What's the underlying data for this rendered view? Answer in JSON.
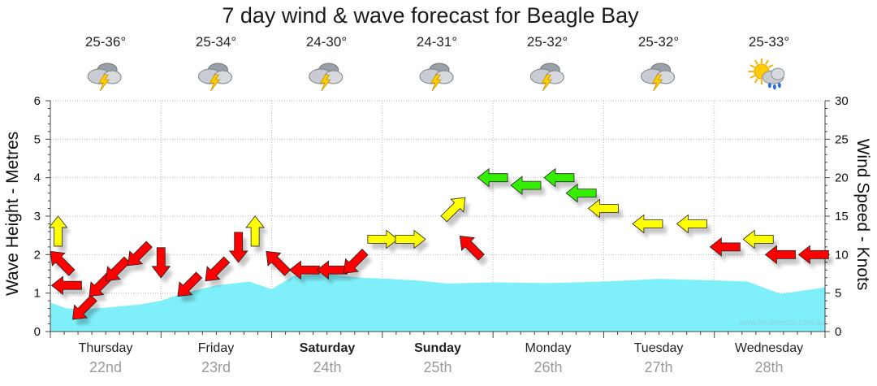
{
  "title": "7 day wind & wave forecast for Beagle Bay",
  "y_left_label": "Wave Height - Metres",
  "y_right_label": "Wind Speed - Knots",
  "watermark": "www.seabreeze.com.au",
  "colors": {
    "wave_fill": "#7ff0fa",
    "wind_red": "#ff0000",
    "wind_yellow": "#ffff00",
    "wind_green": "#33ee00",
    "grid": "#bbbbbb"
  },
  "days": [
    {
      "name": "Thursday",
      "date": "22nd",
      "temp": "25-36°",
      "icon": "thunderstorm-icon",
      "bold": false
    },
    {
      "name": "Friday",
      "date": "23rd",
      "temp": "25-34°",
      "icon": "thunderstorm-icon",
      "bold": false
    },
    {
      "name": "Saturday",
      "date": "24th",
      "temp": "24-30°",
      "icon": "thunderstorm-icon",
      "bold": true
    },
    {
      "name": "Sunday",
      "date": "25th",
      "temp": "24-31°",
      "icon": "thunderstorm-icon",
      "bold": true
    },
    {
      "name": "Monday",
      "date": "26th",
      "temp": "25-32°",
      "icon": "thunderstorm-icon",
      "bold": false
    },
    {
      "name": "Tuesday",
      "date": "27th",
      "temp": "25-32°",
      "icon": "thunderstorm-icon",
      "bold": false
    },
    {
      "name": "Wednesday",
      "date": "28th",
      "temp": "25-33°",
      "icon": "sun-cloud-rain-icon",
      "bold": false
    }
  ],
  "chart_data": {
    "type": "area",
    "title": "7 day wind & wave forecast for Beagle Bay",
    "x_unit": "days from start of Thursday 22nd",
    "xlim": [
      0,
      7
    ],
    "y_left": {
      "label": "Wave Height - Metres",
      "ylim": [
        0,
        6
      ],
      "ticks": [
        0,
        1,
        2,
        3,
        4,
        5,
        6
      ]
    },
    "y_right": {
      "label": "Wind Speed - Knots",
      "ylim": [
        0,
        30
      ],
      "ticks": [
        0,
        5,
        10,
        15,
        20,
        25,
        30
      ]
    },
    "grid": true,
    "wave_height": {
      "x": [
        0,
        0.15,
        0.3,
        0.5,
        0.8,
        1.0,
        1.2,
        1.5,
        1.8,
        2.0,
        2.2,
        2.5,
        2.8,
        3.0,
        3.3,
        3.6,
        4.0,
        4.5,
        5.0,
        5.5,
        6.0,
        6.3,
        6.6,
        7.0
      ],
      "values": [
        0.75,
        0.6,
        0.58,
        0.62,
        0.7,
        0.8,
        1.0,
        1.2,
        1.3,
        1.1,
        1.45,
        1.5,
        1.4,
        1.38,
        1.33,
        1.25,
        1.28,
        1.26,
        1.3,
        1.37,
        1.33,
        1.3,
        0.98,
        1.15
      ]
    },
    "wind": [
      {
        "x": 0.07,
        "speed_knots": 13,
        "direction": "S",
        "color": "yellow"
      },
      {
        "x": 0.1,
        "speed_knots": 9,
        "direction": "SE",
        "color": "red"
      },
      {
        "x": 0.15,
        "speed_knots": 6,
        "direction": "E",
        "color": "red"
      },
      {
        "x": 0.3,
        "speed_knots": 3,
        "direction": "NE",
        "color": "red"
      },
      {
        "x": 0.45,
        "speed_knots": 6,
        "direction": "NE",
        "color": "red"
      },
      {
        "x": 0.6,
        "speed_knots": 8,
        "direction": "NE",
        "color": "red"
      },
      {
        "x": 0.8,
        "speed_knots": 10,
        "direction": "NE",
        "color": "red"
      },
      {
        "x": 1.0,
        "speed_knots": 9,
        "direction": "N",
        "color": "red"
      },
      {
        "x": 1.25,
        "speed_knots": 6,
        "direction": "NE",
        "color": "red"
      },
      {
        "x": 1.5,
        "speed_knots": 8,
        "direction": "NE",
        "color": "red"
      },
      {
        "x": 1.7,
        "speed_knots": 11,
        "direction": "N",
        "color": "red"
      },
      {
        "x": 1.85,
        "speed_knots": 13,
        "direction": "S",
        "color": "yellow"
      },
      {
        "x": 2.05,
        "speed_knots": 9,
        "direction": "SE",
        "color": "red"
      },
      {
        "x": 2.3,
        "speed_knots": 8,
        "direction": "E",
        "color": "red"
      },
      {
        "x": 2.55,
        "speed_knots": 8,
        "direction": "E",
        "color": "red"
      },
      {
        "x": 2.75,
        "speed_knots": 9,
        "direction": "NE",
        "color": "red"
      },
      {
        "x": 3.0,
        "speed_knots": 12,
        "direction": "W",
        "color": "yellow"
      },
      {
        "x": 3.25,
        "speed_knots": 12,
        "direction": "W",
        "color": "yellow"
      },
      {
        "x": 3.65,
        "speed_knots": 16,
        "direction": "SW",
        "color": "yellow"
      },
      {
        "x": 3.8,
        "speed_knots": 11,
        "direction": "SE",
        "color": "red"
      },
      {
        "x": 4.0,
        "speed_knots": 20,
        "direction": "E",
        "color": "green"
      },
      {
        "x": 4.3,
        "speed_knots": 19,
        "direction": "E",
        "color": "green"
      },
      {
        "x": 4.6,
        "speed_knots": 20,
        "direction": "E",
        "color": "green"
      },
      {
        "x": 4.8,
        "speed_knots": 18,
        "direction": "E",
        "color": "green"
      },
      {
        "x": 5.0,
        "speed_knots": 16,
        "direction": "E",
        "color": "yellow"
      },
      {
        "x": 5.4,
        "speed_knots": 14,
        "direction": "E",
        "color": "yellow"
      },
      {
        "x": 5.8,
        "speed_knots": 14,
        "direction": "E",
        "color": "yellow"
      },
      {
        "x": 6.1,
        "speed_knots": 11,
        "direction": "E",
        "color": "red"
      },
      {
        "x": 6.4,
        "speed_knots": 12,
        "direction": "E",
        "color": "yellow"
      },
      {
        "x": 6.6,
        "speed_knots": 10,
        "direction": "E",
        "color": "red"
      },
      {
        "x": 6.9,
        "speed_knots": 10,
        "direction": "E",
        "color": "red"
      }
    ]
  }
}
